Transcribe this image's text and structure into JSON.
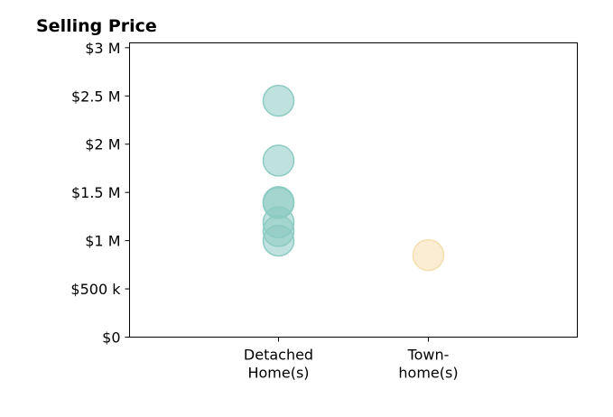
{
  "chart_data": {
    "type": "scatter",
    "title": "Selling Price",
    "xlabel": "",
    "ylabel": "",
    "categories": [
      [
        "Detached",
        "Home(s)"
      ],
      [
        "Town-",
        "home(s)"
      ]
    ],
    "ylim": [
      0,
      3050000
    ],
    "yticks": [
      0,
      500000,
      1000000,
      1500000,
      2000000,
      2500000,
      3000000
    ],
    "ytick_labels": [
      "$0",
      "$500 k",
      "$1 M",
      "$1.5 M",
      "$2 M",
      "$2.5 M",
      "$3 M"
    ],
    "grid": false,
    "series": [
      {
        "category_index": 0,
        "color": "#8ccbc2",
        "values": [
          2450000,
          1830000,
          1400000,
          1390000,
          1190000,
          1100000,
          1000000
        ]
      },
      {
        "category_index": 1,
        "color": "#f5dfae",
        "values": [
          850000
        ]
      }
    ]
  }
}
